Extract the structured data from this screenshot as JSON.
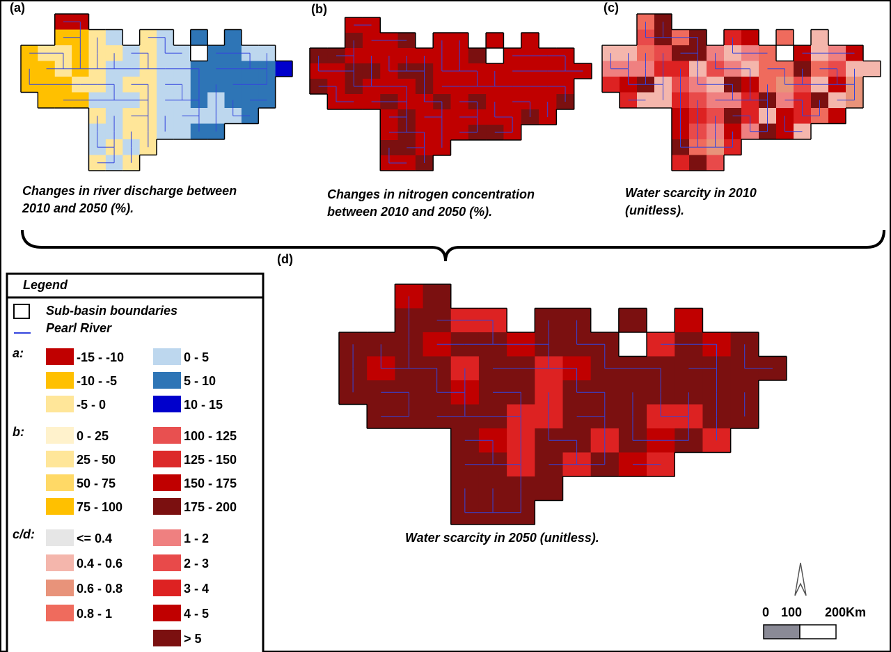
{
  "panels": [
    {
      "label": "(a)",
      "caption_lines": [
        "Changes in river discharge between",
        "2010 and 2050 (%)."
      ]
    },
    {
      "label": "(b)",
      "caption_lines": [
        "Changes in nitrogen concentration",
        "between 2010 and 2050 (%)."
      ]
    },
    {
      "label": "(c)",
      "caption_lines": [
        "Water scarcity in 2010",
        "(unitless)."
      ]
    },
    {
      "label": "(d)",
      "caption_lines": [
        "Water scarcity in 2050 (unitless)."
      ]
    }
  ],
  "legend": {
    "title": "Legend",
    "boundary_label": "Sub-basin boundaries",
    "river_label": "Pearl River",
    "groups": [
      {
        "key": "a:",
        "items": [
          {
            "label": "-15 -  -10",
            "color": "#c00000"
          },
          {
            "label": "-10 -  -5",
            "color": "#ffc000"
          },
          {
            "label": "-5 -   0",
            "color": "#ffe699"
          },
          {
            "label": "0  -  5",
            "color": "#bdd7ee"
          },
          {
            "label": "5 - 10",
            "color": "#2e75b6"
          },
          {
            "label": "10 - 15",
            "color": "#0000cc"
          }
        ]
      },
      {
        "key": "b:",
        "items": [
          {
            "label": "0 -  25",
            "color": "#fff2cc"
          },
          {
            "label": "25 -  50",
            "color": "#ffe699"
          },
          {
            "label": "50 -  75",
            "color": "#ffd966"
          },
          {
            "label": "75 -  100",
            "color": "#ffc000"
          },
          {
            "label": "100  - 125",
            "color": "#e85050"
          },
          {
            "label": "125  - 150",
            "color": "#dc2a2a"
          },
          {
            "label": "150  - 175",
            "color": "#c00000"
          },
          {
            "label": "175  - 200",
            "color": "#7b1010"
          }
        ]
      },
      {
        "key": "c/d:",
        "items": [
          {
            "label": "<= 0.4",
            "color": "#e6e6e6"
          },
          {
            "label": "0.4  -  0.6",
            "color": "#f4b6ac"
          },
          {
            "label": "0.6  -  0.8",
            "color": "#e8937a"
          },
          {
            "label": "0.8  -  1",
            "color": "#ef6b5d"
          },
          {
            "label": "1  -  2",
            "color": "#ef8080"
          },
          {
            "label": "2  -  3",
            "color": "#e84a4a"
          },
          {
            "label": "3  -  4",
            "color": "#dd2222"
          },
          {
            "label": "4  -  5",
            "color": "#c00000"
          },
          {
            "label": "> 5",
            "color": "#7b1010"
          }
        ]
      }
    ]
  },
  "scale_bar": {
    "labels": [
      "0",
      "100",
      "200Km"
    ]
  }
}
